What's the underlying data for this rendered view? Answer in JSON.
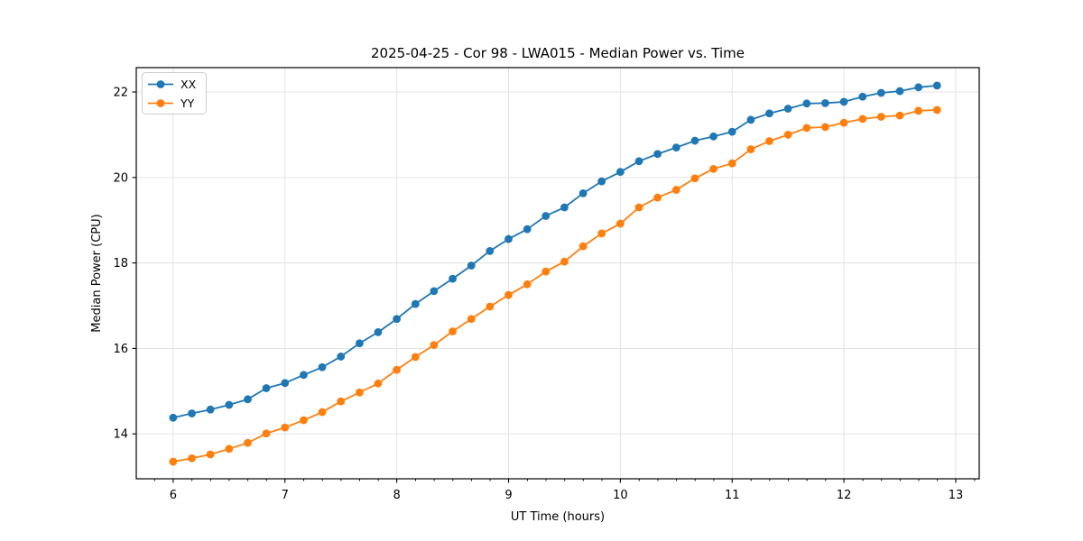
{
  "chart_data": {
    "type": "line",
    "title": "2025-04-25 - Cor 98 - LWA015 - Median Power vs. Time",
    "xlabel": "UT Time (hours)",
    "ylabel": "Median Power (CPU)",
    "xlim": [
      5.67,
      13.21
    ],
    "ylim": [
      12.95,
      22.57
    ],
    "xticks": [
      6,
      7,
      8,
      9,
      10,
      11,
      12,
      13
    ],
    "yticks": [
      14,
      16,
      18,
      20,
      22
    ],
    "x_minor_step": 0.1667,
    "grid": "on",
    "legend_position": "upper-left",
    "background_color": "#ffffff",
    "grid_color": "#e0e0e0",
    "x": [
      6.0,
      6.167,
      6.333,
      6.5,
      6.667,
      6.833,
      7.0,
      7.167,
      7.333,
      7.5,
      7.667,
      7.833,
      8.0,
      8.167,
      8.333,
      8.5,
      8.667,
      8.833,
      9.0,
      9.167,
      9.333,
      9.5,
      9.667,
      9.833,
      10.0,
      10.167,
      10.333,
      10.5,
      10.667,
      10.833,
      11.0,
      11.167,
      11.333,
      11.5,
      11.667,
      11.833,
      12.0,
      12.167,
      12.333,
      12.5,
      12.667,
      12.833
    ],
    "series": [
      {
        "name": "XX",
        "color": "#1f77b4",
        "marker": "circle",
        "values": [
          14.38,
          14.48,
          14.57,
          14.68,
          14.81,
          15.07,
          15.19,
          15.38,
          15.56,
          15.81,
          16.12,
          16.38,
          16.69,
          17.04,
          17.34,
          17.63,
          17.94,
          18.28,
          18.56,
          18.79,
          19.1,
          19.3,
          19.63,
          19.91,
          20.13,
          20.38,
          20.55,
          20.7,
          20.86,
          20.96,
          21.07,
          21.35,
          21.5,
          21.61,
          21.73,
          21.74,
          21.77,
          21.89,
          21.98,
          22.02,
          22.11,
          22.15
        ]
      },
      {
        "name": "YY",
        "color": "#ff7f0e",
        "marker": "circle",
        "values": [
          13.35,
          13.43,
          13.52,
          13.65,
          13.79,
          14.01,
          14.15,
          14.32,
          14.51,
          14.76,
          14.97,
          15.18,
          15.5,
          15.8,
          16.08,
          16.4,
          16.69,
          16.98,
          17.25,
          17.5,
          17.8,
          18.03,
          18.39,
          18.69,
          18.92,
          19.3,
          19.53,
          19.71,
          19.98,
          20.2,
          20.33,
          20.66,
          20.85,
          21.0,
          21.16,
          21.18,
          21.28,
          21.37,
          21.42,
          21.45,
          21.56,
          21.58
        ]
      }
    ]
  }
}
